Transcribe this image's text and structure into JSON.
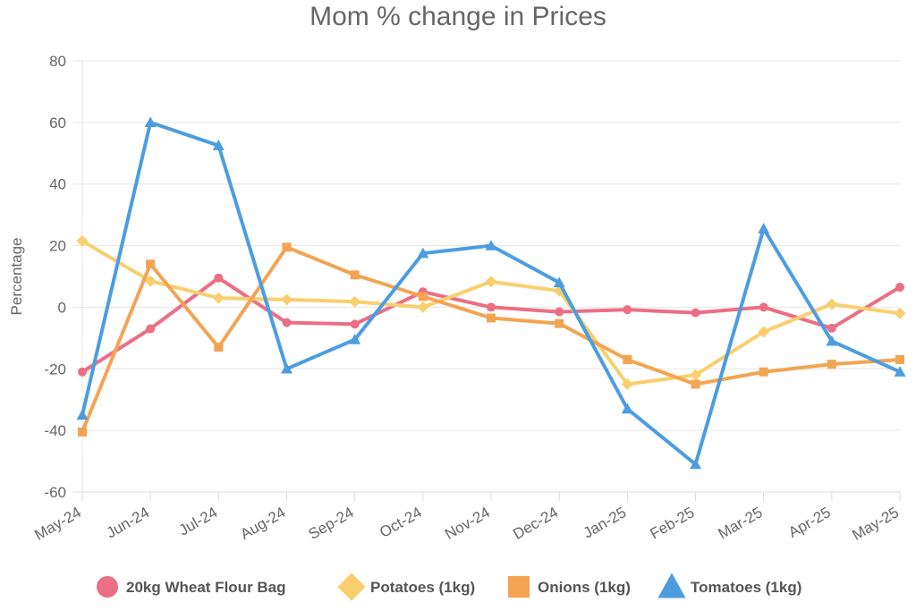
{
  "chart_data": {
    "type": "line",
    "title": "Mom % change in Prices",
    "ylabel": "Percentage",
    "xlabel": "",
    "ylim": [
      -60,
      80
    ],
    "yticks": [
      -60,
      -40,
      -20,
      0,
      20,
      40,
      60,
      80
    ],
    "grid": true,
    "legend_position": "bottom",
    "categories": [
      "May-24",
      "Jun-24",
      "Jul-24",
      "Aug-24",
      "Sep-24",
      "Oct-24",
      "Nov-24",
      "Dec-24",
      "Jan-25",
      "Feb-25",
      "Mar-25",
      "Apr-25",
      "May-25"
    ],
    "series": [
      {
        "name": "20kg Wheat Flour Bag",
        "color": "#EB6E85",
        "marker": "circle",
        "values": [
          -21,
          -7,
          9.5,
          -5,
          -5.5,
          5,
          0,
          -1.5,
          -0.8,
          -1.8,
          0,
          -6.8,
          6.5
        ]
      },
      {
        "name": "Potatoes (1kg)",
        "color": "#F9CF6E",
        "marker": "diamond",
        "values": [
          21.5,
          8.5,
          3,
          2.5,
          1.8,
          0,
          8.3,
          5.3,
          -25,
          -22,
          -8,
          1,
          -2
        ]
      },
      {
        "name": "Onions (1kg)",
        "color": "#F3A452",
        "marker": "square",
        "values": [
          -40.5,
          14,
          -13,
          19.5,
          10.5,
          3.5,
          -3.5,
          -5.3,
          -17,
          -25,
          -21,
          -18.5,
          -17
        ]
      },
      {
        "name": "Tomatoes (1kg)",
        "color": "#4C9DE0",
        "marker": "triangle",
        "values": [
          -35,
          60,
          52.5,
          -20,
          -10.5,
          17.5,
          20,
          8,
          -33,
          -51,
          25.5,
          -11,
          -21
        ]
      }
    ]
  }
}
